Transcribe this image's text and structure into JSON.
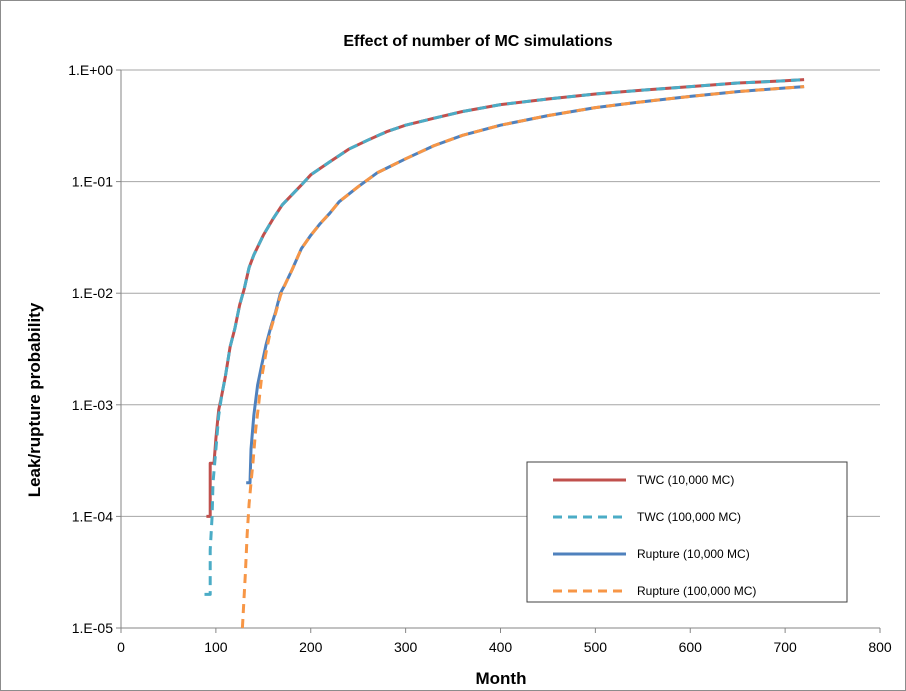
{
  "chart_data": {
    "type": "line",
    "title": "Effect of number of MC simulations",
    "xlabel": "Month",
    "ylabel": "Leak/rupture probability",
    "xlim": [
      0,
      800
    ],
    "ylim": [
      1e-05,
      1
    ],
    "yscale": "log",
    "x_ticks": [
      "0",
      "100",
      "200",
      "300",
      "400",
      "500",
      "600",
      "700",
      "800"
    ],
    "y_ticks": [
      "1.E-05",
      "1.E-04",
      "1.E-03",
      "1.E-02",
      "1.E-01",
      "1.E+00"
    ],
    "grid": "horizontal",
    "legend_position": "bottom-right",
    "series": [
      {
        "name": "TWC (10,000 MC)",
        "color": "#c0504d",
        "dash": "solid",
        "points": [
          [
            90,
            0.0001
          ],
          [
            94,
            0.0001
          ],
          [
            94,
            0.0003
          ],
          [
            98,
            0.0003
          ],
          [
            100,
            0.0005
          ],
          [
            103,
            0.0009
          ],
          [
            106,
            0.0012
          ],
          [
            110,
            0.0018
          ],
          [
            115,
            0.0033
          ],
          [
            120,
            0.0048
          ],
          [
            125,
            0.0078
          ],
          [
            130,
            0.011
          ],
          [
            135,
            0.017
          ],
          [
            140,
            0.022
          ],
          [
            150,
            0.033
          ],
          [
            160,
            0.046
          ],
          [
            170,
            0.062
          ],
          [
            180,
            0.076
          ],
          [
            190,
            0.093
          ],
          [
            200,
            0.115
          ],
          [
            220,
            0.15
          ],
          [
            240,
            0.195
          ],
          [
            260,
            0.235
          ],
          [
            280,
            0.28
          ],
          [
            300,
            0.32
          ],
          [
            330,
            0.37
          ],
          [
            360,
            0.425
          ],
          [
            400,
            0.49
          ],
          [
            450,
            0.55
          ],
          [
            500,
            0.61
          ],
          [
            550,
            0.66
          ],
          [
            600,
            0.71
          ],
          [
            650,
            0.765
          ],
          [
            700,
            0.8
          ],
          [
            720,
            0.82
          ]
        ]
      },
      {
        "name": "TWC (100,000 MC)",
        "color": "#4bacc6",
        "dash": "dashed",
        "points": [
          [
            88,
            2e-05
          ],
          [
            94,
            2e-05
          ],
          [
            94,
            5e-05
          ],
          [
            96,
            0.0001
          ],
          [
            97,
            0.0002
          ],
          [
            100,
            0.0004
          ],
          [
            103,
            0.0008
          ],
          [
            106,
            0.0012
          ],
          [
            110,
            0.0018
          ],
          [
            115,
            0.0033
          ],
          [
            120,
            0.0048
          ],
          [
            125,
            0.0078
          ],
          [
            130,
            0.011
          ],
          [
            135,
            0.017
          ],
          [
            140,
            0.022
          ],
          [
            150,
            0.033
          ],
          [
            160,
            0.046
          ],
          [
            170,
            0.062
          ],
          [
            180,
            0.076
          ],
          [
            190,
            0.093
          ],
          [
            200,
            0.115
          ],
          [
            220,
            0.15
          ],
          [
            240,
            0.195
          ],
          [
            260,
            0.235
          ],
          [
            280,
            0.28
          ],
          [
            300,
            0.32
          ],
          [
            330,
            0.37
          ],
          [
            360,
            0.425
          ],
          [
            400,
            0.49
          ],
          [
            450,
            0.55
          ],
          [
            500,
            0.61
          ],
          [
            550,
            0.66
          ],
          [
            600,
            0.71
          ],
          [
            650,
            0.765
          ],
          [
            700,
            0.8
          ],
          [
            720,
            0.82
          ]
        ]
      },
      {
        "name": "Rupture (10,000 MC)",
        "color": "#4f81bd",
        "dash": "solid",
        "points": [
          [
            132,
            0.0002
          ],
          [
            136,
            0.0002
          ],
          [
            137,
            0.0004
          ],
          [
            140,
            0.0008
          ],
          [
            144,
            0.0015
          ],
          [
            148,
            0.0022
          ],
          [
            153,
            0.0035
          ],
          [
            158,
            0.005
          ],
          [
            163,
            0.0068
          ],
          [
            168,
            0.01
          ],
          [
            173,
            0.012
          ],
          [
            180,
            0.016
          ],
          [
            190,
            0.025
          ],
          [
            200,
            0.033
          ],
          [
            210,
            0.042
          ],
          [
            220,
            0.052
          ],
          [
            230,
            0.066
          ],
          [
            250,
            0.09
          ],
          [
            270,
            0.12
          ],
          [
            300,
            0.16
          ],
          [
            330,
            0.21
          ],
          [
            360,
            0.26
          ],
          [
            400,
            0.32
          ],
          [
            450,
            0.39
          ],
          [
            500,
            0.46
          ],
          [
            550,
            0.52
          ],
          [
            600,
            0.58
          ],
          [
            650,
            0.64
          ],
          [
            700,
            0.69
          ],
          [
            720,
            0.71
          ]
        ]
      },
      {
        "name": "Rupture (100,000 MC)",
        "color": "#f79646",
        "dash": "dashed",
        "points": [
          [
            128,
            1e-05
          ],
          [
            131,
            3e-05
          ],
          [
            133,
            7e-05
          ],
          [
            135,
            0.00013
          ],
          [
            137,
            0.0002
          ],
          [
            139,
            0.0003
          ],
          [
            142,
            0.0006
          ],
          [
            145,
            0.001
          ],
          [
            148,
            0.0017
          ],
          [
            153,
            0.003
          ],
          [
            158,
            0.0048
          ],
          [
            163,
            0.0066
          ],
          [
            168,
            0.0095
          ],
          [
            173,
            0.012
          ],
          [
            180,
            0.016
          ],
          [
            190,
            0.025
          ],
          [
            200,
            0.033
          ],
          [
            210,
            0.042
          ],
          [
            220,
            0.052
          ],
          [
            230,
            0.066
          ],
          [
            250,
            0.09
          ],
          [
            270,
            0.12
          ],
          [
            300,
            0.16
          ],
          [
            330,
            0.21
          ],
          [
            360,
            0.26
          ],
          [
            400,
            0.32
          ],
          [
            450,
            0.39
          ],
          [
            500,
            0.46
          ],
          [
            550,
            0.52
          ],
          [
            600,
            0.58
          ],
          [
            650,
            0.64
          ],
          [
            700,
            0.69
          ],
          [
            720,
            0.71
          ]
        ]
      }
    ]
  }
}
